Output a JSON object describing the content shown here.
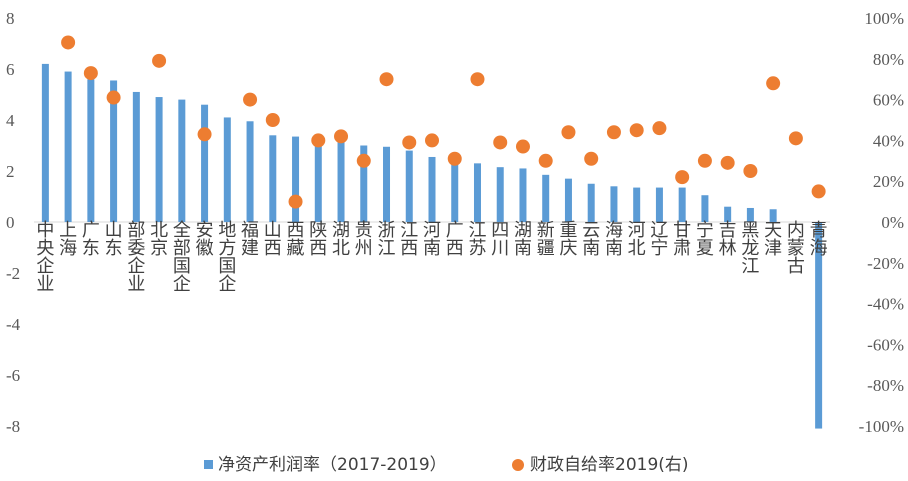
{
  "chart_data": {
    "type": "bar",
    "categories": [
      "中央企业",
      "上海",
      "广东",
      "山东",
      "部委企业",
      "北京",
      "全部国企",
      "安徽",
      "地方国企",
      "福建",
      "山西",
      "西藏",
      "陕西",
      "湖北",
      "贵州",
      "浙江",
      "江西",
      "河南",
      "广西",
      "江苏",
      "四川",
      "湖南",
      "新疆",
      "重庆",
      "云南",
      "海南",
      "河北",
      "辽宁",
      "甘肃",
      "宁夏",
      "吉林",
      "黑龙江",
      "天津",
      "内蒙古",
      "青海"
    ],
    "series": [
      {
        "name": "净资产利润率（2017-2019）",
        "type": "bar",
        "axis": "left",
        "color": "#5b9bd5",
        "values": [
          6.2,
          5.9,
          5.6,
          5.55,
          5.1,
          4.9,
          4.8,
          4.6,
          4.1,
          3.95,
          3.4,
          3.35,
          3.3,
          3.2,
          3.0,
          2.95,
          2.8,
          2.55,
          2.35,
          2.3,
          2.15,
          2.1,
          1.85,
          1.7,
          1.5,
          1.4,
          1.35,
          1.35,
          1.35,
          1.05,
          0.6,
          0.55,
          0.5,
          0.0,
          -8.1
        ]
      },
      {
        "name": "财政自给率2019(右)",
        "type": "scatter",
        "axis": "right",
        "color": "#ed7d31",
        "values": [
          null,
          88,
          73,
          61,
          null,
          79,
          null,
          43,
          null,
          60,
          50,
          10,
          40,
          42,
          30,
          70,
          39,
          40,
          31,
          70,
          39,
          37,
          30,
          44,
          31,
          44,
          45,
          46,
          22,
          30,
          29,
          25,
          68,
          41,
          15
        ]
      }
    ],
    "y_left": {
      "min": -8,
      "max": 8,
      "ticks": [
        "8",
        "6",
        "4",
        "2",
        "0",
        "-2",
        "-4",
        "-6",
        "-8"
      ]
    },
    "y_right": {
      "min": -100,
      "max": 100,
      "ticks": [
        "100%",
        "80%",
        "60%",
        "40%",
        "20%",
        "0%",
        "-20%",
        "-40%",
        "-60%",
        "-80%",
        "-100%"
      ]
    },
    "legend": {
      "position": "bottom",
      "items": [
        "净资产利润率（2017-2019）",
        "财政自给率2019(右)"
      ]
    },
    "grid": false
  }
}
